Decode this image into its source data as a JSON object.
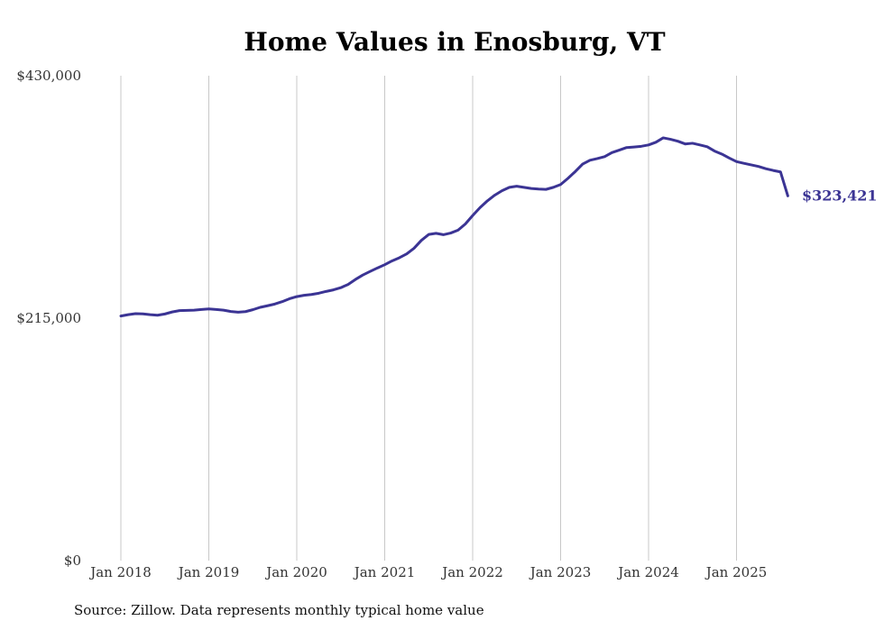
{
  "chart_data": {
    "type": "line",
    "title": "Home Values in Enosburg, VT",
    "xlabel": "",
    "ylabel": "",
    "ylim": [
      0,
      430000
    ],
    "y_ticks": [
      0,
      215000,
      430000
    ],
    "y_tick_labels": [
      "$0",
      "$215,000",
      "$430,000"
    ],
    "x_ticks": [
      "2018-01",
      "2019-01",
      "2020-01",
      "2021-01",
      "2022-01",
      "2023-01",
      "2024-01",
      "2025-01"
    ],
    "x_tick_labels": [
      "Jan 2018",
      "Jan 2019",
      "Jan 2020",
      "Jan 2021",
      "Jan 2022",
      "Jan 2023",
      "Jan 2024",
      "Jan 2025"
    ],
    "grid": "vertical",
    "end_label": "$323,421",
    "colors": {
      "line": "#3b3494",
      "grid": "#c8c8c8",
      "end_label": "#3b3494"
    },
    "series": [
      {
        "x": [
          "2018-01",
          "2018-02",
          "2018-03",
          "2018-04",
          "2018-05",
          "2018-06",
          "2018-07",
          "2018-08",
          "2018-09",
          "2018-10",
          "2018-11",
          "2018-12",
          "2019-01",
          "2019-02",
          "2019-03",
          "2019-04",
          "2019-05",
          "2019-06",
          "2019-07",
          "2019-08",
          "2019-09",
          "2019-10",
          "2019-11",
          "2019-12",
          "2020-01",
          "2020-02",
          "2020-03",
          "2020-04",
          "2020-05",
          "2020-06",
          "2020-07",
          "2020-08",
          "2020-09",
          "2020-10",
          "2020-11",
          "2020-12",
          "2021-01",
          "2021-02",
          "2021-03",
          "2021-04",
          "2021-05",
          "2021-06",
          "2021-07",
          "2021-08",
          "2021-09",
          "2021-10",
          "2021-11",
          "2021-12",
          "2022-01",
          "2022-02",
          "2022-03",
          "2022-04",
          "2022-05",
          "2022-06",
          "2022-07",
          "2022-08",
          "2022-09",
          "2022-10",
          "2022-11",
          "2022-12",
          "2023-01",
          "2023-02",
          "2023-03",
          "2023-04",
          "2023-05",
          "2023-06",
          "2023-07",
          "2023-08",
          "2023-09",
          "2023-10",
          "2023-11",
          "2023-12",
          "2024-01",
          "2024-02",
          "2024-03",
          "2024-04",
          "2024-05",
          "2024-06",
          "2024-07",
          "2024-08",
          "2024-09",
          "2024-10",
          "2024-11",
          "2024-12",
          "2025-01",
          "2025-02",
          "2025-03",
          "2025-04",
          "2025-05",
          "2025-06",
          "2025-07",
          "2025-08"
        ],
        "values": [
          216900,
          218100,
          219000,
          218800,
          218100,
          217600,
          218700,
          220500,
          221700,
          221900,
          222100,
          222700,
          223200,
          222700,
          222100,
          220900,
          220300,
          220800,
          222500,
          224600,
          226000,
          227500,
          229600,
          232200,
          234100,
          235300,
          236000,
          237100,
          238700,
          240100,
          242000,
          244900,
          249300,
          253200,
          256400,
          259500,
          262400,
          265800,
          268600,
          272000,
          277000,
          284000,
          289200,
          290200,
          289000,
          290500,
          293000,
          298500,
          306000,
          313000,
          319000,
          324000,
          328000,
          331000,
          332000,
          331000,
          330000,
          329500,
          329200,
          331000,
          333500,
          339000,
          345000,
          351600,
          355000,
          356500,
          358200,
          361800,
          364000,
          366300,
          366800,
          367400,
          368600,
          371000,
          374900,
          373600,
          371900,
          369500,
          370100,
          368600,
          367000,
          363200,
          360500,
          357000,
          353800,
          352300,
          350900,
          349500,
          347500,
          346000,
          344700,
          323421
        ]
      }
    ]
  },
  "source_note": "Source: Zillow. Data represents monthly typical home value"
}
